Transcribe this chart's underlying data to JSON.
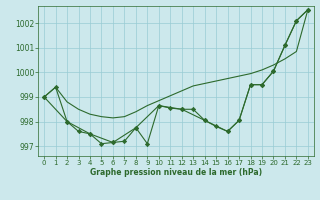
{
  "title": "Graphe pression niveau de la mer (hPa)",
  "background_color": "#cce8ec",
  "grid_color": "#99ccd4",
  "line_color": "#2d6a2d",
  "xlim": [
    -0.5,
    23.5
  ],
  "ylim": [
    996.6,
    1002.7
  ],
  "yticks": [
    997,
    998,
    999,
    1000,
    1001,
    1002
  ],
  "xticks": [
    0,
    1,
    2,
    3,
    4,
    5,
    6,
    7,
    8,
    9,
    10,
    11,
    12,
    13,
    14,
    15,
    16,
    17,
    18,
    19,
    20,
    21,
    22,
    23
  ],
  "series1_x": [
    0,
    1,
    2,
    3,
    4,
    5,
    6,
    7,
    8,
    9,
    10,
    11,
    12,
    13,
    14,
    15,
    16,
    17,
    18,
    19,
    20,
    21,
    22,
    23
  ],
  "series1_y": [
    999.0,
    999.4,
    998.0,
    997.6,
    997.5,
    997.1,
    997.15,
    997.2,
    997.75,
    997.1,
    998.65,
    998.55,
    998.5,
    998.5,
    998.05,
    997.8,
    997.6,
    998.05,
    999.5,
    999.5,
    1000.05,
    1001.1,
    1002.1,
    1002.55
  ],
  "series2_x": [
    0,
    1,
    2,
    3,
    4,
    5,
    6,
    7,
    8,
    9,
    10,
    11,
    12,
    13,
    14,
    15,
    16,
    17,
    18,
    19,
    20,
    21,
    22,
    23
  ],
  "series2_y": [
    999.0,
    999.4,
    998.8,
    998.5,
    998.3,
    998.2,
    998.15,
    998.2,
    998.4,
    998.65,
    998.85,
    999.05,
    999.25,
    999.45,
    999.55,
    999.65,
    999.75,
    999.85,
    999.95,
    1000.1,
    1000.3,
    1000.55,
    1000.85,
    1002.55
  ],
  "series3_x": [
    0,
    2,
    4,
    6,
    8,
    10,
    12,
    14,
    16,
    17,
    18,
    19,
    20,
    21,
    22,
    23
  ],
  "series3_y": [
    999.0,
    998.0,
    997.5,
    997.15,
    997.75,
    998.65,
    998.5,
    998.05,
    997.6,
    998.05,
    999.5,
    999.5,
    1000.05,
    1001.1,
    1002.1,
    1002.55
  ]
}
